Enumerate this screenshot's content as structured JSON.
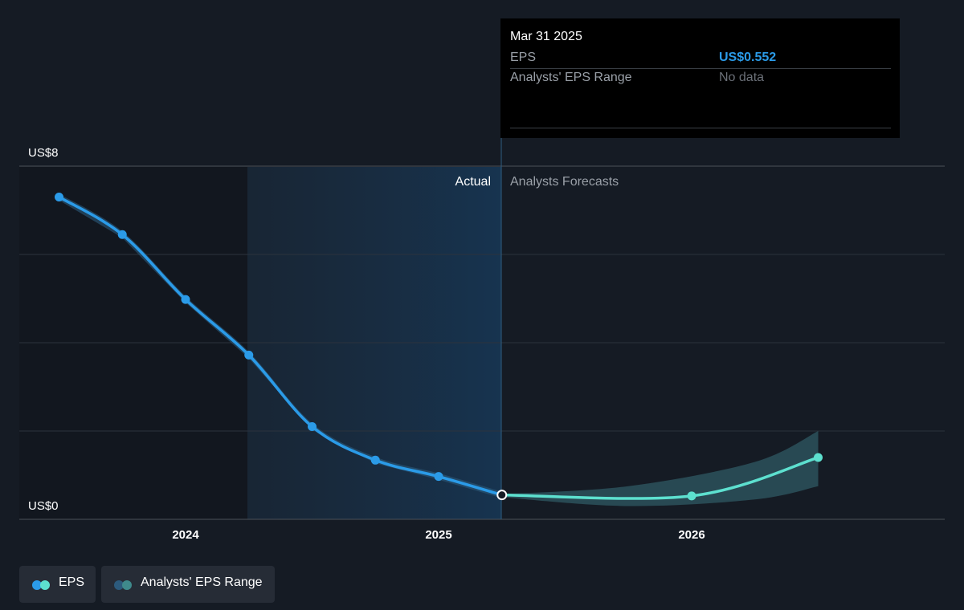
{
  "chart_data": {
    "type": "line",
    "y_axis": {
      "ticks": [
        "US$8",
        "US$0"
      ],
      "ylim": [
        0,
        8
      ]
    },
    "x_axis": {
      "ticks": [
        "2024",
        "2025",
        "2026"
      ]
    },
    "regions": {
      "actual_label": "Actual",
      "forecast_label": "Analysts Forecasts"
    },
    "series": [
      {
        "name": "EPS",
        "kind": "actual",
        "color": "#2b9be8",
        "points": [
          {
            "x": 2023.5,
            "y": 7.3
          },
          {
            "x": 2023.75,
            "y": 6.45
          },
          {
            "x": 2024.0,
            "y": 4.98
          },
          {
            "x": 2024.25,
            "y": 3.72
          },
          {
            "x": 2024.5,
            "y": 2.1
          },
          {
            "x": 2024.75,
            "y": 1.34
          },
          {
            "x": 2025.0,
            "y": 0.97
          },
          {
            "x": 2025.25,
            "y": 0.552
          }
        ]
      },
      {
        "name": "EPS",
        "kind": "forecast",
        "color": "#5de0cf",
        "points": [
          {
            "x": 2025.25,
            "y": 0.552
          },
          {
            "x": 2026.0,
            "y": 0.53
          },
          {
            "x": 2026.5,
            "y": 1.4
          }
        ]
      },
      {
        "name": "Analysts' EPS Range",
        "kind": "range",
        "color": "#2f5a63",
        "upper": [
          {
            "x": 2025.25,
            "y": 0.57
          },
          {
            "x": 2025.75,
            "y": 0.75
          },
          {
            "x": 2026.25,
            "y": 1.3
          },
          {
            "x": 2026.5,
            "y": 2.0
          }
        ],
        "lower": [
          {
            "x": 2025.25,
            "y": 0.5
          },
          {
            "x": 2025.75,
            "y": 0.3
          },
          {
            "x": 2026.25,
            "y": 0.45
          },
          {
            "x": 2026.5,
            "y": 0.75
          }
        ]
      }
    ],
    "tooltip": {
      "date": "Mar 31 2025",
      "rows": [
        {
          "label": "EPS",
          "value": "US$0.552",
          "color": "#2b9be8"
        },
        {
          "label": "Analysts' EPS Range",
          "value": "No data",
          "color": "#6b7078"
        }
      ]
    },
    "legend": [
      {
        "label": "EPS",
        "colors": [
          "#2b9be8",
          "#5de0cf"
        ]
      },
      {
        "label": "Analysts' EPS Range",
        "colors": [
          "#2c5a7c",
          "#3f8a8c"
        ]
      }
    ]
  }
}
